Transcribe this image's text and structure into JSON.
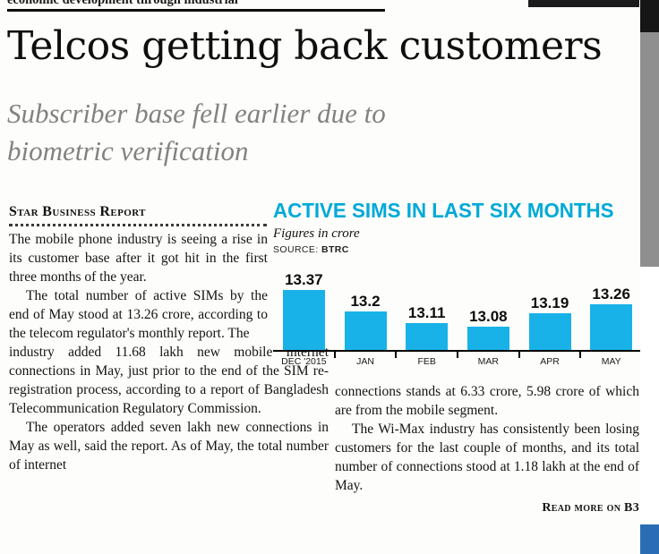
{
  "page": {
    "top_strip_text": "economic development through industrial"
  },
  "article": {
    "headline": "Telcos getting back customers",
    "subhead": "Subscriber base fell earlier due to biometric verification",
    "byline": "Star Business Report",
    "col1_narrow": [
      "The mobile phone industry is seeing a rise in its customer base after it got hit in the first three months of the year.",
      "The total number of active SIMs by the end of May stood at 13.26 crore, according to the telecom regulator's monthly report. The"
    ],
    "col1_wide": [
      "industry added 11.68 lakh new mobile internet connections in May, just prior to the end of the SIM re-registration process, according to a report of Bangladesh Telecommunication Regulatory Commission.",
      "The operators added seven lakh new connections in May as well, said the report. As of May, the total number of internet"
    ],
    "col2": [
      "connections stands at 6.33 crore, 5.98 crore of which are from the mobile segment.",
      "The Wi-Max industry has consistently been losing customers for the last couple of months, and its total number of connections stood at 1.18 lakh at the end of May."
    ],
    "read_more": "Read more on B3"
  },
  "chart": {
    "title": "ACTIVE SIMS IN LAST SIX MONTHS",
    "unit_note": "Figures in crore",
    "source_label": "SOURCE:",
    "source_value": "BTRC",
    "title_color": "#00a9d8",
    "bar_color": "#18b2e8"
  },
  "chart_data": {
    "type": "bar",
    "title": "ACTIVE SIMS IN LAST SIX MONTHS",
    "categories": [
      "DEC '2015",
      "JAN",
      "FEB",
      "MAR",
      "APR",
      "MAY"
    ],
    "values": [
      13.37,
      13.2,
      13.11,
      13.08,
      13.19,
      13.26
    ],
    "unit": "crore",
    "source": "BTRC",
    "xlabel": "",
    "ylabel": "Figures in crore",
    "ylim": [
      12.9,
      13.45
    ],
    "bar_color": "#18b2e8",
    "grid": false,
    "legend": false
  }
}
